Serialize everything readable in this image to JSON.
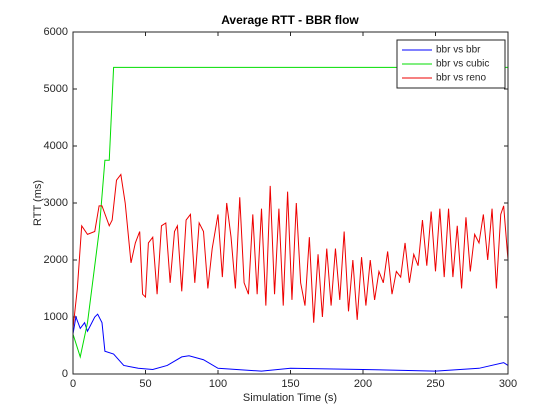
{
  "chart_data": {
    "type": "line",
    "title": "Average RTT - BBR flow",
    "xlabel": "Simulation Time (s)",
    "ylabel": "RTT (ms)",
    "xlim": [
      0,
      300
    ],
    "ylim": [
      0,
      6000
    ],
    "xticks": [
      0,
      50,
      100,
      150,
      200,
      250,
      300
    ],
    "yticks": [
      0,
      1000,
      2000,
      3000,
      4000,
      5000,
      6000
    ],
    "legend": "top-right",
    "series": [
      {
        "name": "bbr vs bbr",
        "color": "#0000ff",
        "x": [
          0,
          2,
          5,
          8,
          10,
          15,
          17,
          20,
          22,
          28,
          35,
          45,
          55,
          65,
          75,
          80,
          90,
          100,
          130,
          150,
          200,
          250,
          280,
          297,
          300
        ],
        "values": [
          700,
          1000,
          800,
          900,
          750,
          1000,
          1050,
          900,
          400,
          350,
          150,
          100,
          80,
          150,
          300,
          320,
          250,
          100,
          50,
          100,
          80,
          50,
          100,
          200,
          150
        ]
      },
      {
        "name": "bbr vs cubic",
        "color": "#00dd00",
        "x": [
          0,
          5,
          10,
          18,
          22,
          25,
          28,
          300
        ],
        "values": [
          700,
          300,
          900,
          2500,
          3750,
          3750,
          5380,
          5380
        ]
      },
      {
        "name": "bbr vs reno",
        "color": "#ee0000",
        "x": [
          0,
          3,
          6,
          10,
          15,
          18,
          20,
          25,
          27,
          30,
          33,
          36,
          40,
          43,
          46,
          48,
          50,
          52,
          55,
          58,
          61,
          64,
          67,
          70,
          72,
          75,
          78,
          81,
          84,
          87,
          90,
          93,
          96,
          100,
          103,
          106,
          109,
          112,
          115,
          118,
          121,
          124,
          127,
          130,
          133,
          136,
          139,
          142,
          145,
          148,
          151,
          154,
          157,
          160,
          163,
          166,
          169,
          172,
          175,
          178,
          181,
          184,
          187,
          190,
          193,
          196,
          199,
          202,
          205,
          208,
          211,
          214,
          217,
          220,
          223,
          226,
          229,
          232,
          235,
          238,
          241,
          244,
          247,
          250,
          253,
          256,
          259,
          262,
          265,
          268,
          271,
          274,
          277,
          280,
          283,
          286,
          289,
          292,
          295,
          297,
          300
        ],
        "values": [
          800,
          1500,
          2600,
          2450,
          2500,
          2950,
          2950,
          2600,
          2700,
          3400,
          3500,
          3000,
          1950,
          2300,
          2500,
          1400,
          1350,
          2300,
          2400,
          1400,
          2600,
          2650,
          1600,
          2500,
          2600,
          1450,
          2700,
          2800,
          1600,
          2650,
          2500,
          1500,
          2200,
          2800,
          1700,
          3000,
          2400,
          1500,
          3100,
          1600,
          1400,
          2800,
          1400,
          2900,
          1200,
          3300,
          1400,
          2900,
          1200,
          3200,
          1300,
          3000,
          1600,
          1200,
          2400,
          900,
          2100,
          1000,
          2200,
          1200,
          2200,
          1300,
          2500,
          1100,
          2000,
          950,
          2050,
          1200,
          2000,
          1300,
          1800,
          1600,
          2150,
          1400,
          1800,
          1700,
          2300,
          1600,
          2100,
          1900,
          2700,
          1900,
          2850,
          1800,
          2900,
          1700,
          2900,
          1700,
          2600,
          1500,
          2750,
          1800,
          2450,
          2300,
          2800,
          2000,
          2900,
          1500,
          2800,
          2950,
          2000
        ]
      }
    ]
  }
}
